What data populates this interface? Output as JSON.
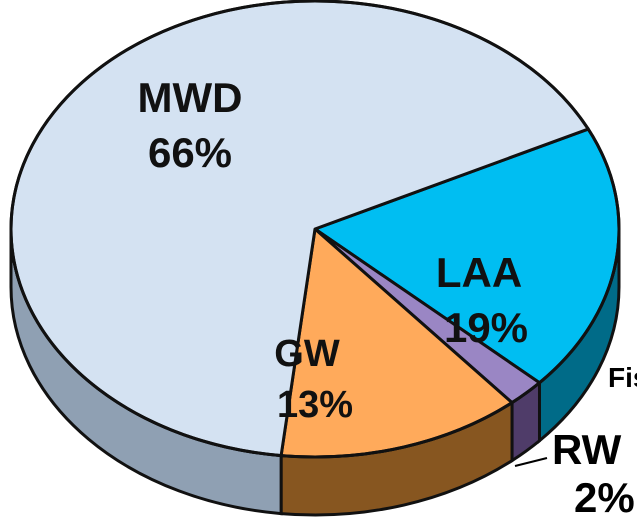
{
  "chart_data": {
    "type": "pie",
    "categories": [
      "MWD",
      "LAA",
      "RW",
      "GW"
    ],
    "values": [
      66,
      19,
      2,
      13
    ],
    "labels": [
      {
        "name": "MWD",
        "value_text": "66%"
      },
      {
        "name": "LAA",
        "value_text": "19%"
      },
      {
        "name": "RW",
        "value_text": "2%"
      },
      {
        "name": "GW",
        "value_text": "13%"
      }
    ],
    "colors": {
      "MWD": "#d4e2f2",
      "LAA": "#00bef2",
      "RW": "#9a86c4",
      "GW": "#ffaa5b"
    },
    "side_colors": {
      "MWD": "#8fa0b3",
      "LAA": "#006b88",
      "RW": "#4f3c69",
      "GW": "#875620"
    },
    "partial_text_right": "Fis",
    "three_d": true,
    "legend": "none"
  }
}
